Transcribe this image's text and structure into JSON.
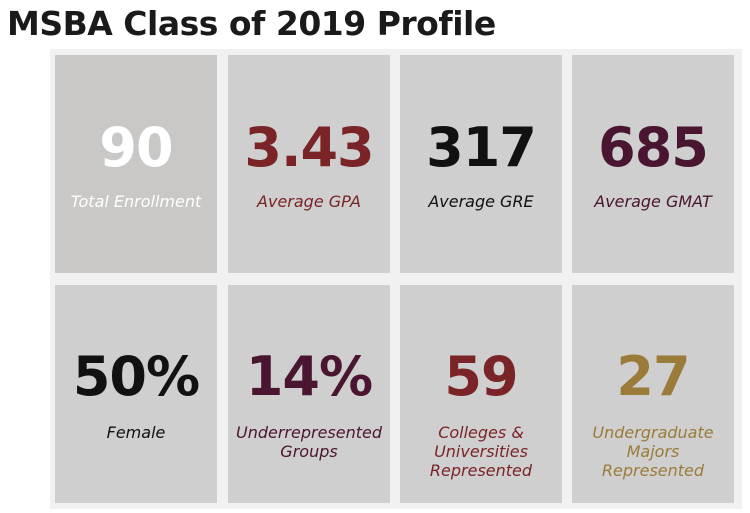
{
  "title": "MSBA Class of 2019 Profile",
  "stats": [
    {
      "value": "90",
      "label": "Total Enrollment",
      "value_color": "#ffffff",
      "label_color": "#ffffff"
    },
    {
      "value": "3.43",
      "label": "Average GPA",
      "value_color": "#7a2427",
      "label_color": "#7a2427"
    },
    {
      "value": "317",
      "label": "Average GRE",
      "value_color": "#111111",
      "label_color": "#111111"
    },
    {
      "value": "685",
      "label": "Average GMAT",
      "value_color": "#4a1530",
      "label_color": "#4a1530"
    },
    {
      "value": "50%",
      "label": "Female",
      "value_color": "#111111",
      "label_color": "#111111"
    },
    {
      "value": "14%",
      "label": "Underrepresented\nGroups",
      "value_color": "#4a1530",
      "label_color": "#4a1530"
    },
    {
      "value": "59",
      "label": "Colleges &\nUniversities\nRepresented",
      "value_color": "#7a2427",
      "label_color": "#7a2427"
    },
    {
      "value": "27",
      "label": "Undergraduate\nMajors\nRepresented",
      "value_color": "#9a7b3a",
      "label_color": "#9a7b3a"
    }
  ]
}
